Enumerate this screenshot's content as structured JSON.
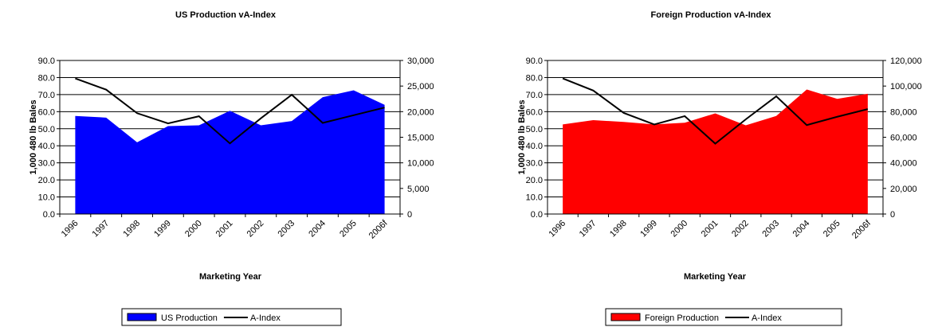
{
  "chart_data": [
    {
      "type": "area",
      "title": "US Production vA-Index",
      "xlabel": "Marketing Year",
      "ylabel": "1,000 480 lb Bales",
      "categories": [
        "1996",
        "1997",
        "1998",
        "1999",
        "2000",
        "2001",
        "2002",
        "2003",
        "2004",
        "2005",
        "2006f"
      ],
      "ylim": [
        0,
        90
      ],
      "y_ticks": [
        "0.0",
        "10.0",
        "20.0",
        "30.0",
        "40.0",
        "50.0",
        "60.0",
        "70.0",
        "80.0",
        "90.0"
      ],
      "y2lim": [
        0,
        30000
      ],
      "y2_ticks": [
        "0",
        "5,000",
        "10,000",
        "15,000",
        "20,000",
        "25,000",
        "30,000"
      ],
      "grid": true,
      "legend_position": "bottom",
      "series": [
        {
          "name": "US Production",
          "axis": "left",
          "kind": "area",
          "color": "#0000ff",
          "values": [
            57.5,
            56.5,
            42.0,
            51.5,
            52.0,
            60.5,
            52.0,
            54.5,
            68.5,
            72.5,
            64.0
          ]
        },
        {
          "name": "A-Index",
          "axis": "right",
          "kind": "line",
          "color": "#000000",
          "values": [
            26500,
            24300,
            19700,
            17700,
            19100,
            13800,
            18700,
            23300,
            17800,
            19300,
            20800
          ]
        }
      ]
    },
    {
      "type": "area",
      "title": "Foreign Production vA-Index",
      "xlabel": "Marketing Year",
      "ylabel": "1,000 480 lb Bales",
      "categories": [
        "1996",
        "1997",
        "1998",
        "1999",
        "2000",
        "2001",
        "2002",
        "2003",
        "2004",
        "2005",
        "2006f"
      ],
      "ylim": [
        0,
        90
      ],
      "y_ticks": [
        "0.0",
        "10.0",
        "20.0",
        "30.0",
        "40.0",
        "50.0",
        "60.0",
        "70.0",
        "80.0",
        "90.0"
      ],
      "y2lim": [
        0,
        120000
      ],
      "y2_ticks": [
        "0",
        "20,000",
        "40,000",
        "60,000",
        "80,000",
        "100,000",
        "120,000"
      ],
      "grid": true,
      "legend_position": "bottom",
      "series": [
        {
          "name": "Foreign Production",
          "axis": "left",
          "kind": "area",
          "color": "#ff0000",
          "values": [
            52.5,
            55.0,
            54.0,
            52.5,
            53.5,
            59.0,
            52.0,
            57.5,
            73.0,
            67.5,
            70.5
          ]
        },
        {
          "name": "A-Index",
          "axis": "right",
          "kind": "line",
          "color": "#000000",
          "values": [
            106000,
            96500,
            79000,
            70000,
            76500,
            55000,
            74000,
            92000,
            69500,
            76000,
            82000
          ]
        }
      ]
    }
  ]
}
